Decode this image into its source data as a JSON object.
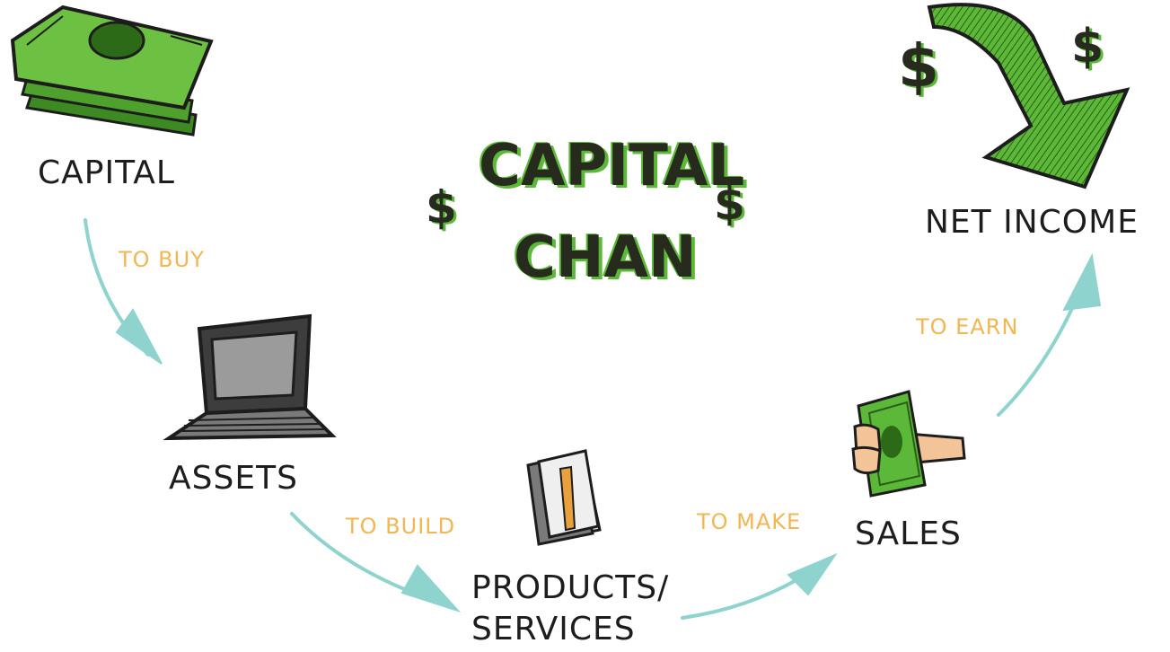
{
  "title": {
    "line1": "CAPITAL",
    "line2": "CHAN",
    "dollar_left": "$",
    "dollar_right": "$"
  },
  "nodes": {
    "capital": "CAPITAL",
    "assets": "ASSETS",
    "products_line1": "PRODUCTS/",
    "products_line2": "SERVICES",
    "sales": "SALES",
    "net_income": "NET INCOME"
  },
  "edges": {
    "to_buy": "TO BUY",
    "to_build": "TO BUILD",
    "to_make": "TO MAKE",
    "to_earn": "TO EARN"
  },
  "income_symbols": {
    "dollar_1": "$",
    "dollar_2": "$"
  },
  "colors": {
    "green": "#5cb838",
    "dark_green": "#3d8a22",
    "arrow_teal": "#8fd3cf",
    "edge_label": "#f2b652",
    "ink": "#1d1d1d"
  }
}
